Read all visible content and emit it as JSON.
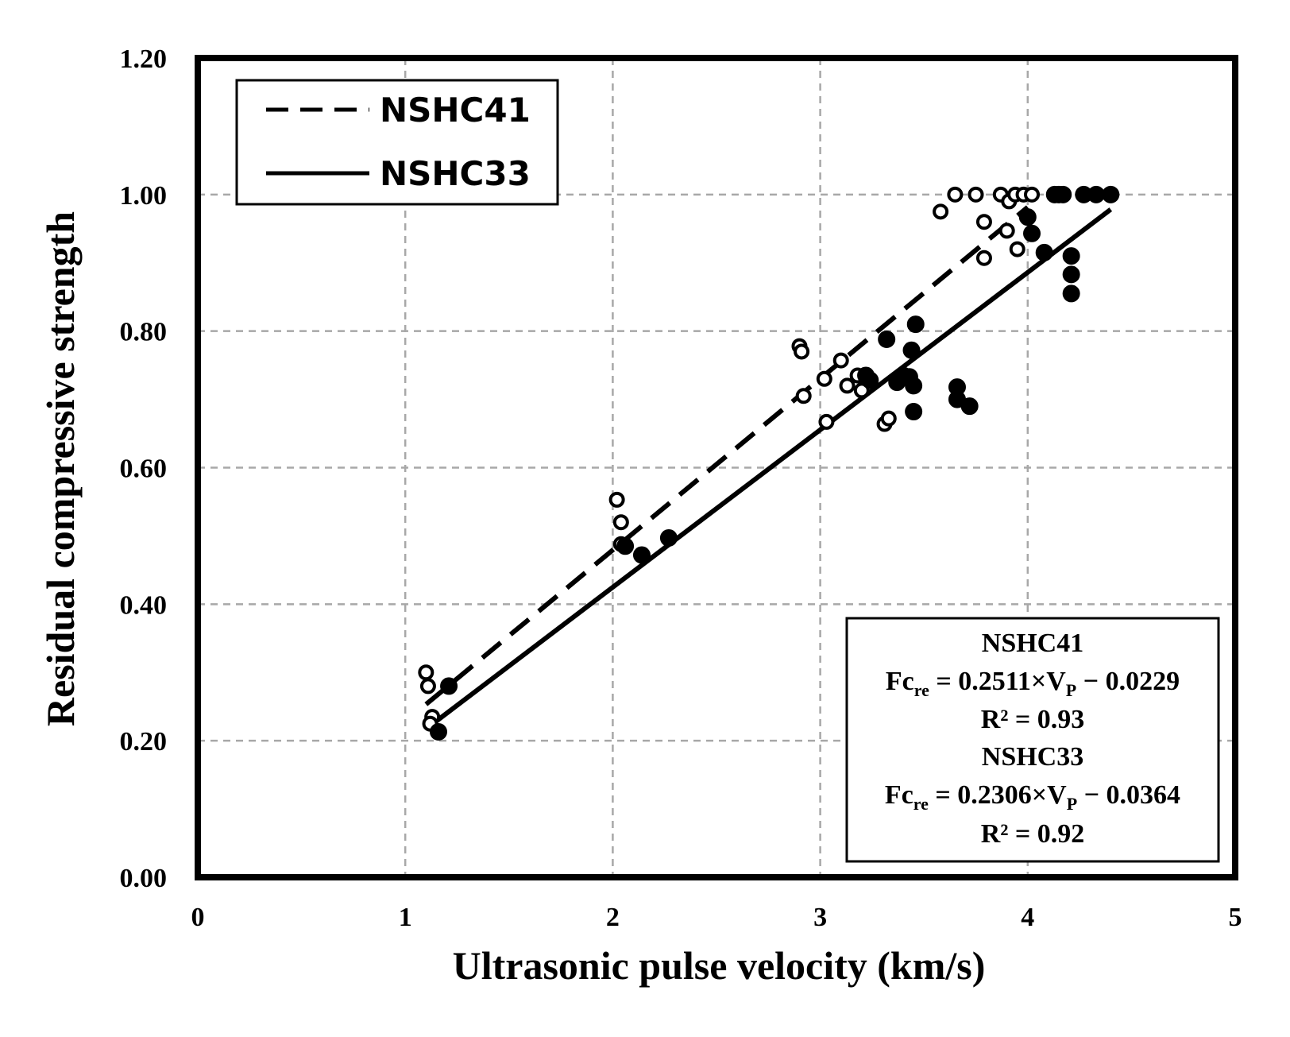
{
  "chart_data": {
    "type": "scatter",
    "title": "",
    "xlabel": "Ultrasonic pulse velocity (km/s)",
    "ylabel": "Residual compressive strength",
    "xlim": [
      0,
      5
    ],
    "ylim": [
      0,
      1.2
    ],
    "xticks": [
      0,
      1,
      2,
      3,
      4,
      5
    ],
    "yticks": [
      0,
      0.2,
      0.4,
      0.6,
      0.8,
      1.0,
      1.2
    ],
    "xtick_labels": [
      "0",
      "1",
      "2",
      "3",
      "4",
      "5"
    ],
    "ytick_labels": [
      "0.00",
      "0.20",
      "0.40",
      "0.60",
      "0.80",
      "1.00",
      "1.20"
    ],
    "grid": true,
    "legend_position": "top-left",
    "legend": [
      "NSHC41",
      "NSHC33"
    ],
    "series": [
      {
        "name": "NSHC41",
        "marker": "open-circle",
        "line": "dashed",
        "fit": {
          "slope": 0.2511,
          "intercept": -0.0229,
          "x_range": [
            1.1,
            4.0
          ]
        },
        "points": [
          [
            1.1,
            0.3
          ],
          [
            1.11,
            0.28
          ],
          [
            1.13,
            0.235
          ],
          [
            1.12,
            0.225
          ],
          [
            2.02,
            0.553
          ],
          [
            2.04,
            0.52
          ],
          [
            2.04,
            0.488
          ],
          [
            2.9,
            0.778
          ],
          [
            2.91,
            0.77
          ],
          [
            2.92,
            0.705
          ],
          [
            3.02,
            0.73
          ],
          [
            3.03,
            0.667
          ],
          [
            3.1,
            0.757
          ],
          [
            3.13,
            0.72
          ],
          [
            3.18,
            0.735
          ],
          [
            3.2,
            0.713
          ],
          [
            3.31,
            0.664
          ],
          [
            3.33,
            0.672
          ],
          [
            3.58,
            0.975
          ],
          [
            3.65,
            1.0
          ],
          [
            3.75,
            1.0
          ],
          [
            3.79,
            0.96
          ],
          [
            3.79,
            0.907
          ],
          [
            3.87,
            1.0
          ],
          [
            3.9,
            0.947
          ],
          [
            3.91,
            0.99
          ],
          [
            3.94,
            1.0
          ],
          [
            3.95,
            0.92
          ],
          [
            3.98,
            1.0
          ],
          [
            4.02,
            1.0
          ]
        ]
      },
      {
        "name": "NSHC33",
        "marker": "filled-circle",
        "line": "solid",
        "fit": {
          "slope": 0.2306,
          "intercept": -0.0364,
          "x_range": [
            1.15,
            4.4
          ]
        },
        "points": [
          [
            1.16,
            0.213
          ],
          [
            1.21,
            0.28
          ],
          [
            2.06,
            0.485
          ],
          [
            2.14,
            0.472
          ],
          [
            2.27,
            0.497
          ],
          [
            3.22,
            0.735
          ],
          [
            3.24,
            0.728
          ],
          [
            3.32,
            0.788
          ],
          [
            3.37,
            0.725
          ],
          [
            3.4,
            0.735
          ],
          [
            3.43,
            0.733
          ],
          [
            3.44,
            0.772
          ],
          [
            3.45,
            0.682
          ],
          [
            3.45,
            0.72
          ],
          [
            3.46,
            0.81
          ],
          [
            3.66,
            0.718
          ],
          [
            3.66,
            0.7
          ],
          [
            3.72,
            0.69
          ],
          [
            4.0,
            0.967
          ],
          [
            4.02,
            0.943
          ],
          [
            4.08,
            0.915
          ],
          [
            4.13,
            1.0
          ],
          [
            4.15,
            1.0
          ],
          [
            4.17,
            1.0
          ],
          [
            4.21,
            0.91
          ],
          [
            4.21,
            0.883
          ],
          [
            4.21,
            0.855
          ],
          [
            4.27,
            1.0
          ],
          [
            4.33,
            1.0
          ],
          [
            4.4,
            1.0
          ]
        ]
      }
    ],
    "annotations": {
      "eq41": {
        "series": "NSHC41",
        "prefix": "Fc",
        "sub": "re",
        "body": " = 0.2511×V",
        "vsub": "P",
        "tail": " − 0.0229",
        "r2": "R² = 0.93"
      },
      "eq33": {
        "series": "NSHC33",
        "prefix": "Fc",
        "sub": "re",
        "body": " = 0.2306×V",
        "vsub": "P",
        "tail": " − 0.0364",
        "r2": "R² = 0.92"
      }
    }
  }
}
